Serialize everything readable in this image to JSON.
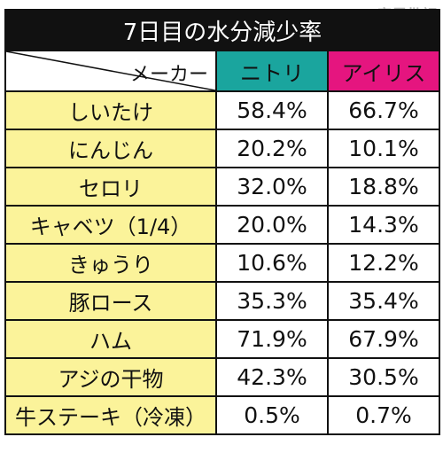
{
  "watermark": "家電批評",
  "title": "7日目の水分減少率",
  "header": {
    "corner_label": "メーカー",
    "makers": [
      "ニトリ",
      "アイリス"
    ]
  },
  "colors": {
    "title_bg": "#111111",
    "nitori": "#1aa59e",
    "iris": "#e5157f",
    "food_bg": "#fbf39a"
  },
  "rows": [
    {
      "food": "しいたけ",
      "nitori": "58.4%",
      "iris": "66.7%"
    },
    {
      "food": "にんじん",
      "nitori": "20.2%",
      "iris": "10.1%"
    },
    {
      "food": "セロリ",
      "nitori": "32.0%",
      "iris": "18.8%"
    },
    {
      "food": "キャベツ（1/4）",
      "nitori": "20.0%",
      "iris": "14.3%"
    },
    {
      "food": "きゅうり",
      "nitori": "10.6%",
      "iris": "12.2%"
    },
    {
      "food": "豚ロース",
      "nitori": "35.3%",
      "iris": "35.4%"
    },
    {
      "food": "ハム",
      "nitori": "71.9%",
      "iris": "67.9%"
    },
    {
      "food": "アジの干物",
      "nitori": "42.3%",
      "iris": "30.5%"
    },
    {
      "food": "牛ステーキ（冷凍）",
      "nitori": "0.5%",
      "iris": "0.7%"
    }
  ]
}
